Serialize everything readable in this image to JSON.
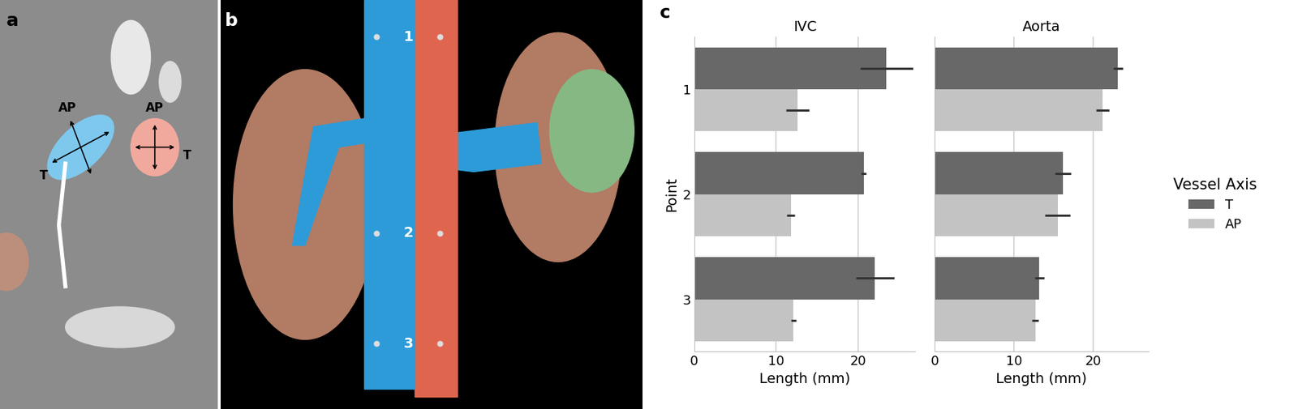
{
  "panels": {
    "a": {
      "label": "a",
      "ivc_axis_labels": [
        "AP",
        "T"
      ],
      "aorta_axis_labels": [
        "AP",
        "T"
      ]
    },
    "b": {
      "label": "b",
      "points": [
        "1",
        "2",
        "3"
      ]
    },
    "c": {
      "label": "c"
    }
  },
  "legend_title": "Vessel Axis",
  "chart_data": [
    {
      "type": "bar",
      "orientation": "horizontal",
      "title": "IVC",
      "categories": [
        "1",
        "2",
        "3"
      ],
      "ylabel": "Point",
      "xlabel": "Length (mm)",
      "xlim": [
        0,
        27
      ],
      "xticks": [
        0,
        10,
        20
      ],
      "grid": "x",
      "legend": "right",
      "series": [
        {
          "name": "T",
          "color": "#686868",
          "values": [
            23.5,
            20.7,
            22.1
          ],
          "errors": [
            3.2,
            0.3,
            2.3
          ]
        },
        {
          "name": "AP",
          "color": "#c3c3c3",
          "values": [
            12.6,
            11.8,
            12.1
          ],
          "errors": [
            1.4,
            0.5,
            0.3
          ]
        }
      ]
    },
    {
      "type": "bar",
      "orientation": "horizontal",
      "title": "Aorta",
      "categories": [
        "1",
        "2",
        "3"
      ],
      "xlabel": "Length (mm)",
      "tick_labels": "x",
      "xlim": [
        0,
        27
      ],
      "xticks": [
        0,
        10,
        20
      ],
      "grid": "x",
      "series": [
        {
          "name": "T",
          "color": "#686868",
          "values": [
            23.1,
            16.2,
            13.2
          ],
          "errors": [
            0.6,
            1.0,
            0.6
          ]
        },
        {
          "name": "AP",
          "color": "#c3c3c3",
          "values": [
            21.2,
            15.5,
            12.7
          ],
          "errors": [
            0.8,
            1.6,
            0.4
          ]
        }
      ]
    }
  ]
}
